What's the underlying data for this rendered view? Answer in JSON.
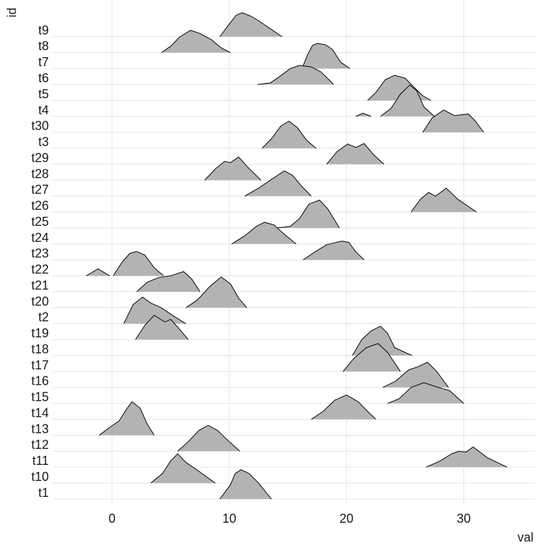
{
  "chart_data": {
    "type": "ridgeline",
    "x_label": "val",
    "y_label": "id",
    "xlim": [
      -5.1,
      36.1
    ],
    "xticks": [
      0,
      10,
      20,
      30
    ],
    "ylim": [
      0.74,
      32.3
    ],
    "grid": true,
    "fill": "#b3b3b3",
    "line_color": "#000000",
    "categories": [
      "t1",
      "t10",
      "t11",
      "t12",
      "t13",
      "t14",
      "t15",
      "t16",
      "t17",
      "t18",
      "t19",
      "t2",
      "t20",
      "t21",
      "t22",
      "t23",
      "t24",
      "t25",
      "t26",
      "t27",
      "t28",
      "t29",
      "t3",
      "t30",
      "t4",
      "t5",
      "t6",
      "t7",
      "t8",
      "t9"
    ],
    "ridges": [
      {
        "x": [
          9.2,
          10.1,
          10.5,
          11,
          11.7,
          12.5,
          13.6
        ],
        "heights": [
          0,
          0.9,
          1.6,
          1.84,
          1.6,
          1.0,
          0
        ]
      },
      {
        "x": [
          3.3,
          4.3,
          5,
          5.6,
          6.3,
          7.3,
          8.8
        ],
        "heights": [
          0,
          0.6,
          1.4,
          1.84,
          1.3,
          0.8,
          0
        ]
      },
      {
        "x": [
          26.8,
          28,
          29,
          29.6,
          30.2,
          30.8,
          32,
          33.7
        ],
        "heights": [
          0,
          0.4,
          0.85,
          1.0,
          0.95,
          1.27,
          0.6,
          0
        ]
      },
      {
        "x": [
          5.6,
          6.5,
          7.4,
          8.2,
          9,
          10,
          10.9
        ],
        "heights": [
          0,
          0.6,
          1.3,
          1.62,
          1.3,
          0.6,
          0
        ]
      },
      {
        "x": [
          -1.1,
          -0.2,
          0.6,
          1.2,
          1.7,
          2.4,
          3,
          3.6
        ],
        "heights": [
          0,
          0.5,
          0.9,
          1.6,
          2.1,
          1.7,
          0.7,
          0
        ]
      },
      {
        "x": [
          17,
          18,
          19,
          20,
          21,
          21.8,
          22.5
        ],
        "heights": [
          0,
          0.5,
          1.2,
          1.53,
          1.1,
          0.5,
          0
        ]
      },
      {
        "x": [
          23.5,
          24.5,
          25.5,
          26.6,
          27.6,
          28.8,
          30
        ],
        "heights": [
          0,
          0.3,
          1.0,
          1.3,
          1.05,
          0.8,
          0
        ]
      },
      {
        "x": [
          23.1,
          24.2,
          25.3,
          26.1,
          26.9,
          27.7,
          28.7
        ],
        "heights": [
          0,
          0.4,
          1.1,
          1.3,
          1.58,
          1.0,
          0
        ]
      },
      {
        "x": [
          19.7,
          20.6,
          21.7,
          22.7,
          23.5,
          24.6
        ],
        "heights": [
          0,
          0.8,
          1.5,
          1.75,
          1.2,
          0
        ]
      },
      {
        "x": [
          20.5,
          21.3,
          22.1,
          22.9,
          23.5,
          24.1,
          25.6
        ],
        "heights": [
          0,
          1.0,
          1.55,
          1.84,
          1.4,
          0.5,
          0
        ]
      },
      {
        "x": [
          2,
          2.8,
          3.6,
          4.5,
          5,
          5.7,
          6.5
        ],
        "heights": [
          0,
          0.9,
          1.53,
          1.1,
          1.27,
          0.7,
          0
        ]
      },
      {
        "x": [
          1,
          1.8,
          2.6,
          3.3,
          4.2,
          5.2,
          6.3
        ],
        "heights": [
          0,
          1.2,
          1.67,
          1.3,
          1.0,
          0.5,
          0
        ]
      },
      {
        "x": [
          6.3,
          7.3,
          8.3,
          9.3,
          10.1,
          10.8,
          11.5
        ],
        "heights": [
          0,
          0.5,
          1.3,
          1.93,
          1.5,
          0.6,
          0
        ]
      },
      {
        "x": [
          2.1,
          3,
          4,
          5,
          6.1,
          6.8,
          7.5
        ],
        "heights": [
          0,
          0.6,
          0.9,
          1.0,
          1.27,
          0.8,
          0
        ]
      },
      {
        "x": [
          -2.2,
          -1.2,
          -0.2,
          null,
          0.1,
          0.8,
          1.5,
          2.1,
          2.8,
          3.6,
          4.4
        ],
        "heights": [
          0,
          0.44,
          0,
          null,
          0,
          0.8,
          1.4,
          1.53,
          1.3,
          0.5,
          0
        ]
      },
      {
        "x": [
          16.3,
          17.3,
          18.3,
          19.6,
          20.2,
          20.8,
          21.5
        ],
        "heights": [
          0,
          0.5,
          0.95,
          1.18,
          1.1,
          0.5,
          0
        ]
      },
      {
        "x": [
          10.2,
          11.3,
          12.3,
          13,
          13.8,
          14.7,
          15.7
        ],
        "heights": [
          0,
          0.5,
          1.1,
          1.36,
          1.2,
          0.6,
          0
        ]
      },
      {
        "x": [
          14,
          15.2,
          16,
          16.8,
          17.7,
          18.4,
          19.4
        ],
        "heights": [
          0,
          0.1,
          0.6,
          1.5,
          1.75,
          1.2,
          0
        ]
      },
      {
        "x": [
          25.5,
          26.3,
          27,
          27.6,
          28.5,
          29.5,
          31.1
        ],
        "heights": [
          0,
          0.8,
          1.23,
          1.0,
          1.5,
          0.8,
          0
        ]
      },
      {
        "x": [
          11.3,
          12.5,
          13.7,
          14.7,
          15.4,
          16.2,
          17
        ],
        "heights": [
          0,
          0.5,
          1.1,
          1.58,
          1.3,
          0.6,
          0
        ]
      },
      {
        "x": [
          7.9,
          8.8,
          9.6,
          10.1,
          10.8,
          11.6,
          12.7
        ],
        "heights": [
          0,
          0.7,
          1.18,
          1.1,
          1.45,
          0.8,
          0
        ]
      },
      {
        "x": [
          18.3,
          19.2,
          20.1,
          20.8,
          21.5,
          22.3,
          23.2
        ],
        "heights": [
          0,
          0.8,
          1.27,
          1.05,
          1.3,
          0.6,
          0
        ]
      },
      {
        "x": [
          12.8,
          13.6,
          14.4,
          15.1,
          15.8,
          16.6,
          17.4
        ],
        "heights": [
          0,
          0.6,
          1.4,
          1.7,
          1.3,
          0.5,
          0
        ]
      },
      {
        "x": [
          26.5,
          27.3,
          28.3,
          29.2,
          30.4,
          31,
          31.7
        ],
        "heights": [
          0,
          0.9,
          1.4,
          1.05,
          1.15,
          0.7,
          0
        ]
      },
      {
        "x": [
          20.8,
          21.4,
          22.1,
          null,
          22.9,
          23.8,
          24.6,
          25.4,
          26,
          26.6,
          27.5
        ],
        "heights": [
          0,
          0.2,
          0,
          null,
          0,
          0.5,
          1.4,
          1.97,
          1.6,
          0.6,
          0
        ]
      },
      {
        "x": [
          21.8,
          22.5,
          23.3,
          24.1,
          25,
          25.8,
          26.5,
          27.2
        ],
        "heights": [
          0,
          0.5,
          1.3,
          1.58,
          1.4,
          0.8,
          0.3,
          0
        ]
      },
      {
        "x": [
          12.4,
          13.5,
          14.3,
          15.2,
          16,
          17,
          17.8,
          18.5,
          18.9
        ],
        "heights": [
          0,
          0.1,
          0.5,
          1.0,
          1.2,
          1.1,
          0.8,
          0.3,
          0
        ]
      },
      {
        "x": [
          16.2,
          16.7,
          17.1,
          17.5,
          18.2,
          18.8,
          19.5,
          20.3
        ],
        "heights": [
          0,
          0.9,
          1.45,
          1.58,
          1.5,
          1.2,
          0.4,
          0
        ]
      },
      {
        "x": [
          4.2,
          5,
          5.8,
          6.7,
          7.5,
          8.5,
          9.3,
          10.1
        ],
        "heights": [
          0,
          0.4,
          1.0,
          1.4,
          1.2,
          0.8,
          0.3,
          0
        ]
      },
      {
        "x": [
          9.2,
          10,
          10.6,
          11.1,
          11.8,
          12.5,
          13.5,
          14.5
        ],
        "heights": [
          0,
          0.8,
          1.35,
          1.5,
          1.3,
          1.0,
          0.5,
          0
        ]
      }
    ]
  }
}
